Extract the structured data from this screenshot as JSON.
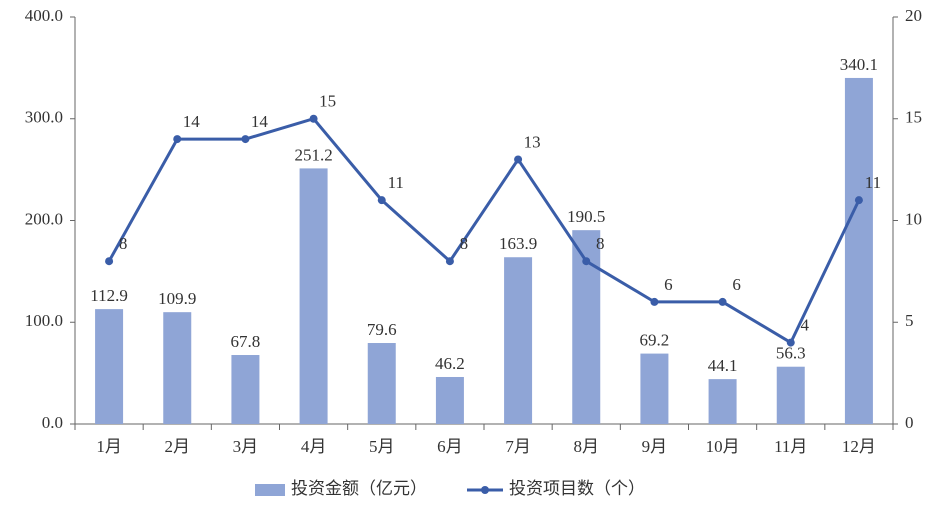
{
  "chart_data": {
    "type": "combo",
    "categories": [
      "1月",
      "2月",
      "3月",
      "4月",
      "5月",
      "6月",
      "7月",
      "8月",
      "9月",
      "10月",
      "11月",
      "12月"
    ],
    "series": [
      {
        "name": "投资金额（亿元）",
        "type": "bar",
        "color": "#8fa5d6",
        "values": [
          112.9,
          109.9,
          67.8,
          251.2,
          79.6,
          46.2,
          163.9,
          190.5,
          69.2,
          44.1,
          56.3,
          340.1
        ]
      },
      {
        "name": "投资项目数（个）",
        "type": "line",
        "color": "#3a5da8",
        "axis": "y2",
        "values": [
          8,
          14,
          14,
          15,
          11,
          8,
          13,
          8,
          6,
          6,
          4,
          11
        ]
      }
    ],
    "ylim": [
      0,
      400
    ],
    "yticks": [
      {
        "value": 0,
        "label": "0.0"
      },
      {
        "value": 100,
        "label": "100.0"
      },
      {
        "value": 200,
        "label": "200.0"
      },
      {
        "value": 300,
        "label": "300.0"
      },
      {
        "value": 400,
        "label": "400.0"
      }
    ],
    "y2lim": [
      0,
      20
    ],
    "y2ticks": [
      0,
      5,
      10,
      15,
      20
    ],
    "grid": false,
    "legend": "bottom"
  }
}
